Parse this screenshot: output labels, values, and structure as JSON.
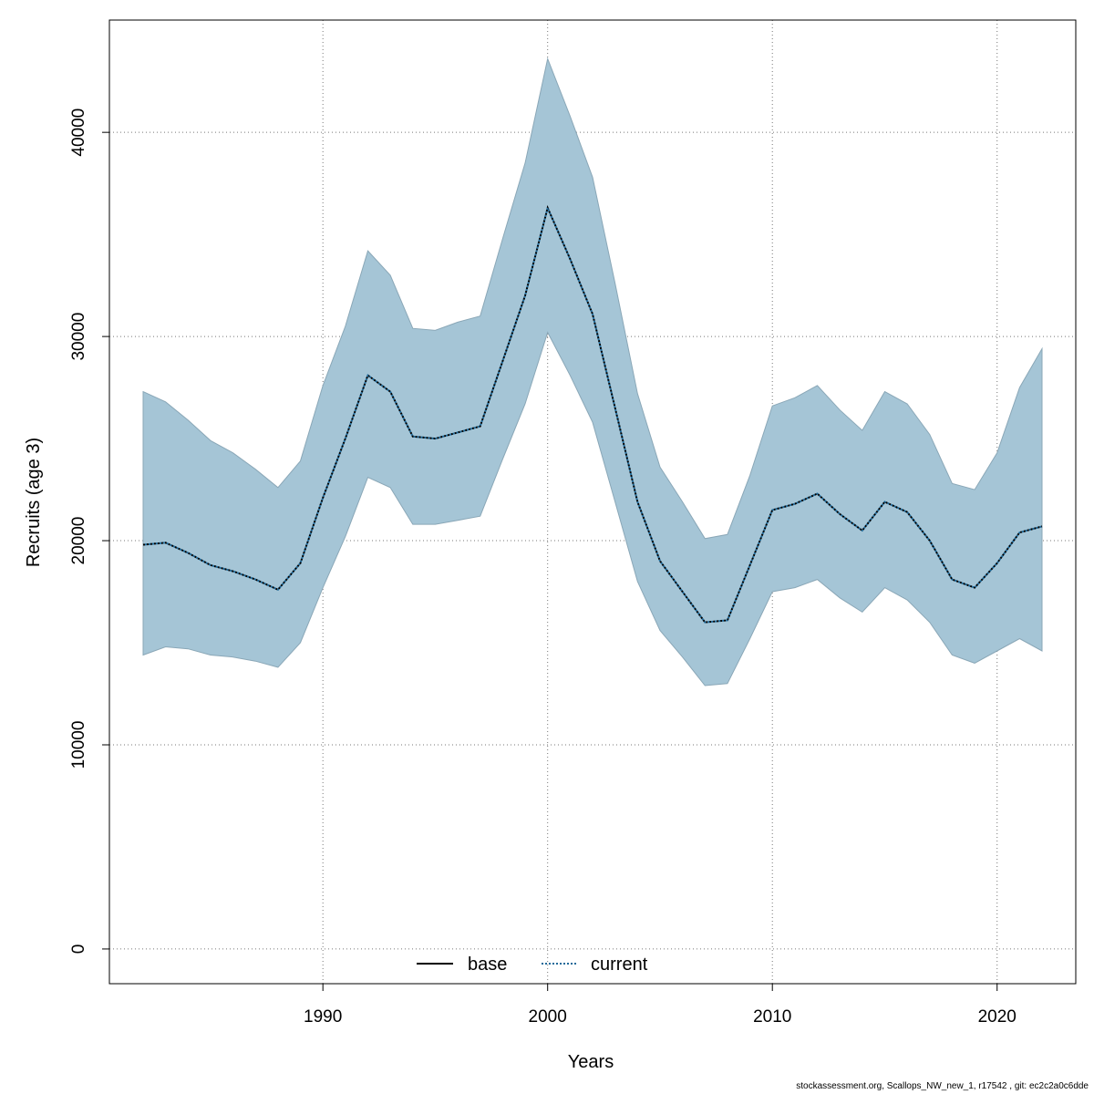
{
  "chart_data": {
    "type": "line",
    "xlabel": "Years",
    "ylabel": "Recruits (age 3)",
    "xlim": [
      1980.5,
      2023.5
    ],
    "ylim": [
      -1700,
      45500
    ],
    "x_ticks": [
      1990,
      2000,
      2010,
      2020
    ],
    "y_ticks": [
      0,
      10000,
      20000,
      30000,
      40000
    ],
    "grid": true,
    "legend_position": "bottom",
    "colors": {
      "band": "#a5c5d6",
      "band_edge": "#8aa7b7",
      "base": "#000000",
      "current": "#1f6a9a"
    },
    "legend": [
      {
        "label": "base",
        "style": "solid"
      },
      {
        "label": "current",
        "style": "dotted"
      }
    ],
    "x": [
      1982,
      1983,
      1984,
      1985,
      1986,
      1987,
      1988,
      1989,
      1990,
      1991,
      1992,
      1993,
      1994,
      1995,
      1996,
      1997,
      1998,
      1999,
      2000,
      2001,
      2002,
      2003,
      2004,
      2005,
      2006,
      2007,
      2008,
      2009,
      2010,
      2011,
      2012,
      2013,
      2014,
      2015,
      2016,
      2017,
      2018,
      2019,
      2020,
      2021,
      2022
    ],
    "series": [
      {
        "name": "base",
        "style": "solid",
        "values": [
          19800,
          19900,
          19400,
          18800,
          18500,
          18100,
          17600,
          18900,
          22100,
          25000,
          28100,
          27300,
          25100,
          25000,
          25300,
          25600,
          28800,
          32000,
          36300,
          33800,
          31100,
          26500,
          21900,
          19000,
          17500,
          16000,
          16100,
          18800,
          21500,
          21800,
          22300,
          21300,
          20500,
          21900,
          21400,
          20000,
          18100,
          17700,
          18900,
          20400,
          20700
        ]
      },
      {
        "name": "current",
        "style": "dotted",
        "values": [
          19800,
          19900,
          19400,
          18800,
          18500,
          18100,
          17600,
          18900,
          22100,
          25000,
          28100,
          27300,
          25100,
          25000,
          25300,
          25600,
          28800,
          32000,
          36300,
          33800,
          31100,
          26500,
          21900,
          19000,
          17500,
          16000,
          16100,
          18800,
          21500,
          21800,
          22300,
          21300,
          20500,
          21900,
          21400,
          20000,
          18100,
          17700,
          18900,
          20400,
          20700
        ]
      }
    ],
    "band": {
      "upper": [
        27300,
        26800,
        25900,
        24900,
        24300,
        23500,
        22600,
        23900,
        27600,
        30500,
        34200,
        33000,
        30400,
        30300,
        30700,
        31000,
        34800,
        38500,
        43600,
        40800,
        37800,
        32600,
        27200,
        23600,
        21900,
        20100,
        20300,
        23200,
        26600,
        27000,
        27600,
        26400,
        25400,
        27300,
        26700,
        25200,
        22800,
        22500,
        24300,
        27500,
        29400
      ],
      "lower": [
        14400,
        14800,
        14700,
        14400,
        14300,
        14100,
        13800,
        15000,
        17700,
        20200,
        23100,
        22600,
        20800,
        20800,
        21000,
        21200,
        24000,
        26700,
        30200,
        28100,
        25800,
        21900,
        18000,
        15600,
        14300,
        12900,
        13000,
        15200,
        17500,
        17700,
        18100,
        17200,
        16500,
        17700,
        17100,
        16000,
        14400,
        14000,
        14600,
        15200,
        14600
      ]
    }
  },
  "footer": "stockassessment.org, Scallops_NW_new_1, r17542 , git: ec2c2a0c6dde"
}
